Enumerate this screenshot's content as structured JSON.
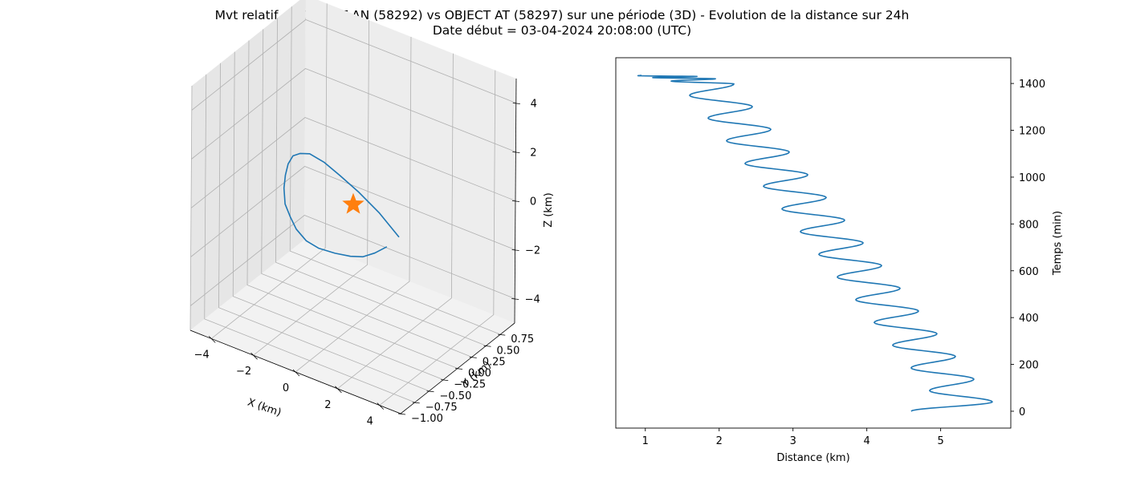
{
  "figure": {
    "title_line1": "Mvt relatif de OBJECT AN (58292) vs OBJECT AT (58297) sur une période (3D) - Evolution de la distance sur 24h",
    "title_line2": "Date début = 03-04-2024 20:08:00 (UTC)"
  },
  "chart_data": [
    {
      "type": "line3d",
      "xlabel": "X (km)",
      "ylabel": "Y (km)",
      "zlabel": "Z (km)",
      "xticks": [
        "−4",
        "−2",
        "0",
        "2",
        "4"
      ],
      "yticks": [
        "−1.00",
        "−0.75",
        "−0.50",
        "−0.25",
        "0.00",
        "0.25",
        "0.50",
        "0.75"
      ],
      "zticks": [
        "−4",
        "−2",
        "0",
        "2",
        "4"
      ],
      "xlim": [
        -5,
        5
      ],
      "ylim": [
        -1,
        1
      ],
      "zlim": [
        -5,
        5
      ],
      "grid": true,
      "line_color": "#1f77b4",
      "marker_color": "#ff7f0e",
      "marker": "star",
      "marker_point": {
        "x": 0,
        "y": 0,
        "z": 0
      },
      "series": [
        {
          "x": [
            4.6,
            3.8,
            2.9,
            1.9,
            0.9,
            -0.2,
            -1.2,
            -2.2,
            -3.1,
            -3.9,
            -4.5,
            -4.9,
            -5.0,
            -4.9,
            -4.5,
            -3.9,
            -3.0,
            -2.0,
            -1.0,
            0.1,
            1.2
          ],
          "y": [
            -0.9,
            -0.95,
            -0.98,
            -0.95,
            -0.85,
            -0.7,
            -0.5,
            -0.25,
            0.0,
            0.25,
            0.45,
            0.62,
            0.75,
            0.82,
            0.85,
            0.85,
            0.8,
            0.7,
            0.55,
            0.35,
            0.15
          ],
          "z": [
            1.9,
            2.7,
            3.3,
            3.6,
            3.6,
            3.3,
            2.6,
            1.7,
            0.6,
            -0.6,
            -1.7,
            -2.8,
            -3.6,
            -4.2,
            -4.6,
            -4.7,
            -4.5,
            -4.1,
            -3.5,
            -2.6,
            -1.6
          ]
        }
      ]
    },
    {
      "type": "line",
      "xlabel": "Distance (km)",
      "ylabel": "Temps (min)",
      "xticks": [
        1,
        2,
        3,
        4,
        5
      ],
      "yticks": [
        0,
        200,
        400,
        600,
        800,
        1000,
        1200,
        1400
      ],
      "xlim": [
        0.6,
        5.95
      ],
      "ylim": [
        -72,
        1510
      ],
      "grid": false,
      "y_axis_side": "right",
      "line_color": "#1f77b4",
      "series": [
        {
          "x": [
            4.6,
            5.7,
            4.85,
            5.45,
            4.6,
            5.2,
            4.35,
            4.95,
            4.1,
            4.7,
            3.85,
            4.45,
            3.6,
            4.2,
            3.35,
            3.95,
            3.1,
            3.7,
            2.85,
            3.45,
            2.6,
            3.2,
            2.35,
            2.95,
            2.1,
            2.7,
            1.85,
            2.45,
            1.6,
            2.2,
            1.35,
            1.95,
            1.1,
            1.7,
            0.9,
            0.95
          ],
          "y": [
            0,
            40,
            88,
            137,
            185,
            234,
            282,
            331,
            379,
            428,
            476,
            525,
            573,
            622,
            670,
            719,
            767,
            816,
            864,
            913,
            961,
            1010,
            1058,
            1107,
            1155,
            1204,
            1252,
            1301,
            1349,
            1398,
            1410,
            1420,
            1425,
            1430,
            1433,
            1435
          ]
        }
      ]
    }
  ]
}
